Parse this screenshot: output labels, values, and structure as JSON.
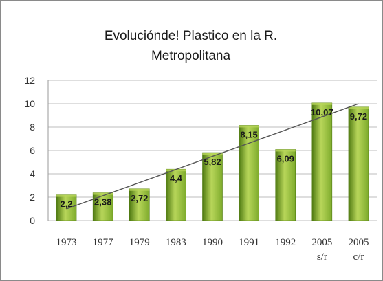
{
  "chart_data": {
    "type": "bar",
    "title_lines": [
      "Evoluciónde! Plastico en la R.",
      "Metropolitana"
    ],
    "categories": [
      [
        "1973"
      ],
      [
        "1977"
      ],
      [
        "1979"
      ],
      [
        "1983"
      ],
      [
        "1990"
      ],
      [
        "1991"
      ],
      [
        "1992"
      ],
      [
        "2005",
        "s/r"
      ],
      [
        "2005",
        "c/r"
      ]
    ],
    "values": [
      2.2,
      2.38,
      2.72,
      4.4,
      5.82,
      8.15,
      6.09,
      10.07,
      9.72
    ],
    "data_labels": [
      "2,2",
      "2,38",
      "2,72",
      "4,4",
      "5,82",
      "8,15",
      "6,09",
      "10,07",
      "9,72"
    ],
    "y_ticks": [
      "0",
      "2",
      "4",
      "6",
      "8",
      "10",
      "12"
    ],
    "ylim": [
      0,
      12
    ],
    "trendline": {
      "type": "linear",
      "start": 1.0,
      "end": 10.0
    },
    "grid": true,
    "legend": "none",
    "colors": {
      "bar_light": "#b8d65a",
      "bar_mid": "#7eab2c",
      "bar_dark": "#4f7a12",
      "grid": "#bdbdbd",
      "trend": "#555555"
    }
  }
}
